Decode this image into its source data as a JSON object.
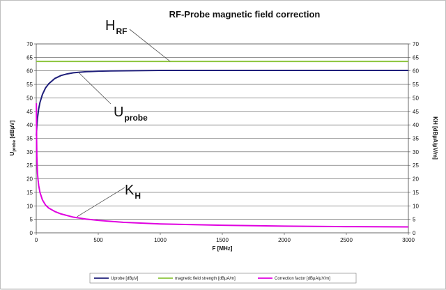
{
  "chart_data": {
    "type": "line",
    "title": "RF-Probe magnetic field correction",
    "xlabel": "F [MHz]",
    "ylabel_left": {
      "main": "U",
      "sub": "probe",
      "rest": " [dBµV]"
    },
    "ylabel_right": "KH [dBµA/µV/m]",
    "xlim": [
      0,
      3000
    ],
    "ylim": [
      0,
      70
    ],
    "y2lim": [
      0,
      70
    ],
    "x_ticks": [
      "0",
      "500",
      "1000",
      "1500",
      "2000",
      "2500",
      "3000"
    ],
    "y_ticks": [
      "0",
      "5",
      "10",
      "15",
      "20",
      "25",
      "30",
      "35",
      "40",
      "45",
      "50",
      "55",
      "60",
      "65",
      "70"
    ],
    "grid": true,
    "legend_position": "bottom",
    "series": [
      {
        "name": "Uprobe [dBµV]",
        "color": "#1f1f7a",
        "x": [
          1,
          5,
          10,
          20,
          30,
          50,
          75,
          100,
          150,
          200,
          250,
          300,
          400,
          500,
          600,
          800,
          1000,
          1500,
          2000,
          2500,
          3000
        ],
        "y": [
          36,
          39.5,
          42.5,
          46,
          48.3,
          51.3,
          53.7,
          55.2,
          57.2,
          58.3,
          58.9,
          59.3,
          59.7,
          59.9,
          60.0,
          60.1,
          60.2,
          60.2,
          60.2,
          60.2,
          60.2
        ]
      },
      {
        "name": "magnetic field strength [dBµA/m]",
        "color": "#8cc43c",
        "x": [
          0,
          3000
        ],
        "y": [
          63.5,
          63.5
        ]
      },
      {
        "name": "Correction factor [dBµA/µV/m]",
        "color": "#e000e0",
        "x": [
          1,
          3,
          5,
          10,
          15,
          20,
          30,
          50,
          75,
          100,
          150,
          200,
          300,
          400,
          500,
          700,
          1000,
          1500,
          2000,
          2500,
          3000
        ],
        "y": [
          48,
          35,
          28,
          22,
          19.5,
          17.5,
          15,
          12.2,
          10.3,
          9.2,
          7.9,
          7,
          5.8,
          5.1,
          4.6,
          3.9,
          3.3,
          2.8,
          2.5,
          2.3,
          2.2
        ]
      }
    ],
    "annotations": [
      {
        "id": "hrf",
        "main": "H",
        "sub": "RF",
        "x": 1080,
        "y": 63.5
      },
      {
        "id": "uprobe",
        "main": "U",
        "sub": "probe",
        "x": 340,
        "y": 59.5
      },
      {
        "id": "kh",
        "main": "K",
        "sub": "H",
        "x": 330,
        "y": 6
      }
    ]
  }
}
